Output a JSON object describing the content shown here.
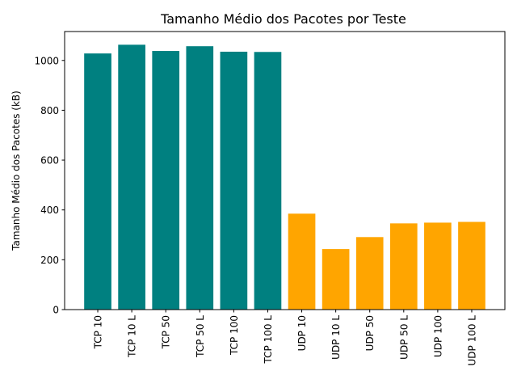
{
  "chart_data": {
    "type": "bar",
    "title": "Tamanho Médio dos Pacotes por Teste",
    "xlabel": "",
    "ylabel": "Tamanho Médio dos Pacotes (kB)",
    "categories": [
      "TCP 10",
      "TCP 10 L",
      "TCP 50",
      "TCP 50 L",
      "TCP 100",
      "TCP 100 L",
      "UDP 10",
      "UDP 10 L",
      "UDP 50",
      "UDP 50 L",
      "UDP 100",
      "UDP 100 L"
    ],
    "values": [
      1028,
      1063,
      1038,
      1057,
      1035,
      1034,
      385,
      243,
      291,
      346,
      349,
      352
    ],
    "bar_colors": [
      "#008080",
      "#008080",
      "#008080",
      "#008080",
      "#008080",
      "#008080",
      "#FFA500",
      "#FFA500",
      "#FFA500",
      "#FFA500",
      "#FFA500",
      "#FFA500"
    ],
    "ylim": [
      0,
      1116
    ],
    "yticks": [
      0,
      200,
      400,
      600,
      800,
      1000
    ],
    "grid": false,
    "legend": "none"
  }
}
